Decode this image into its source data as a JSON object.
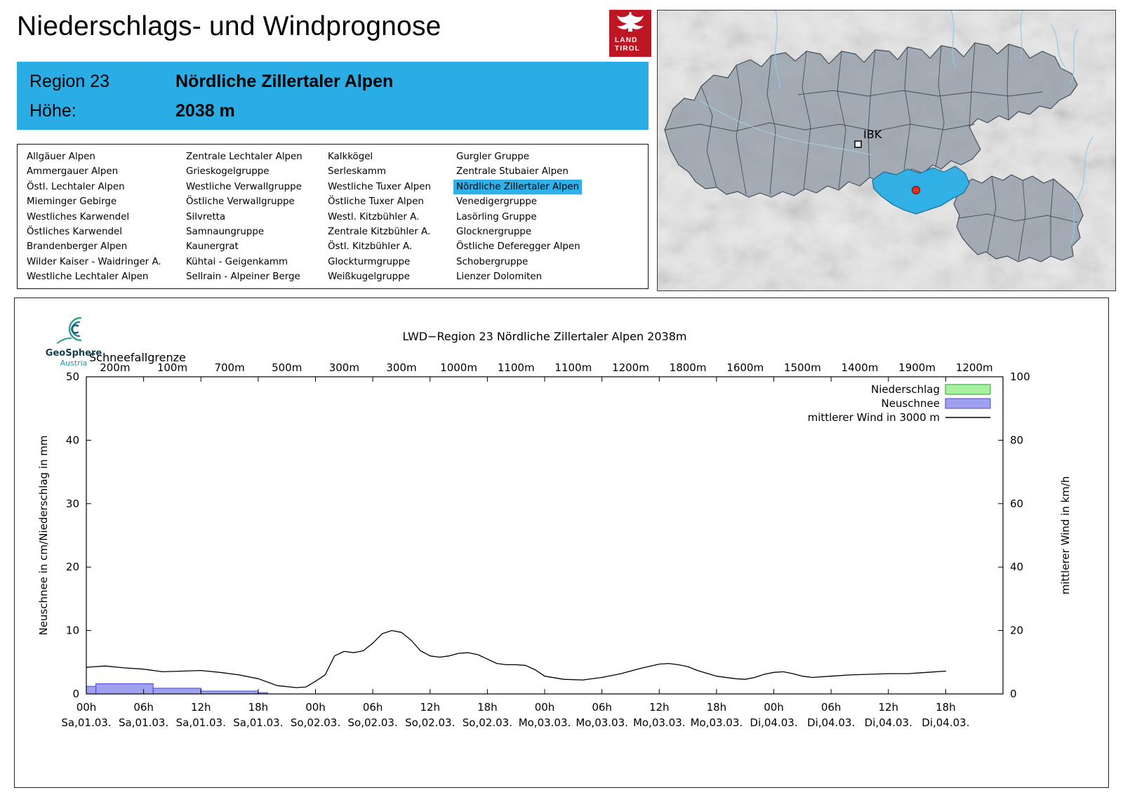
{
  "page": {
    "title": "Niederschlags- und Windprognose"
  },
  "branding": {
    "land_tirol_line1": "LAND",
    "land_tirol_line2": "TIROL",
    "geosphere_line1": "GeoSphere",
    "geosphere_line2": "Austria"
  },
  "region_header": {
    "region_label": "Region 23",
    "region_name": "Nördliche Zillertaler Alpen",
    "hoehe_label": "Höhe:",
    "hoehe_value": "2038 m"
  },
  "region_list": {
    "selected": "Nördliche Zillertaler Alpen",
    "columns": [
      [
        "Allgäuer Alpen",
        "Ammergauer Alpen",
        "Östl. Lechtaler Alpen",
        "Mieminger Gebirge",
        "Westliches Karwendel",
        "Östliches Karwendel",
        "Brandenberger Alpen",
        "Wilder Kaiser - Waidringer A.",
        "Westliche Lechtaler Alpen"
      ],
      [
        "Zentrale Lechtaler Alpen",
        "Grieskogelgruppe",
        "Westliche Verwallgruppe",
        "Östliche Verwallgruppe",
        "Silvretta",
        "Samnaungruppe",
        "Kaunergrat",
        "Kühtai - Geigenkamm",
        "Sellrain - Alpeiner Berge"
      ],
      [
        "Kalkkögel",
        "Serleskamm",
        "Westliche Tuxer Alpen",
        "Östliche Tuxer Alpen",
        "Westl. Kitzbühler A.",
        "Zentrale Kitzbühler A.",
        "Östl. Kitzbühler A.",
        "Glockturmgruppe",
        "Weißkugelgruppe"
      ],
      [
        "Gurgler Gruppe",
        "Zentrale Stubaier Alpen",
        "Nördliche Zillertaler Alpen",
        "Venedigergruppe",
        "Lasörling Gruppe",
        "Glocknergruppe",
        "Östliche Deferegger Alpen",
        "Schobergruppe",
        "Lienzer Dolomiten"
      ]
    ]
  },
  "map": {
    "ibk_label": "IBK",
    "highlight_color": "#29b0e8",
    "marker_color": "#e03224"
  },
  "chart_data": {
    "type": "composite-timeseries",
    "title": "LWD−Region 23 Nördliche Zillertaler Alpen 2038m",
    "left_axis": {
      "label": "Neuschnee in cm/Niederschlag in mm",
      "min": 0,
      "max": 50,
      "ticks": [
        0,
        10,
        20,
        30,
        40,
        50
      ]
    },
    "right_axis": {
      "label": "mittlerer Wind in km/h",
      "min": 0,
      "max": 100,
      "ticks": [
        0,
        20,
        40,
        60,
        80,
        100
      ]
    },
    "x_axis": {
      "hours_min": 0,
      "hours_max": 96,
      "tick_step_h": 6,
      "tick_labels": [
        "00h",
        "06h",
        "12h",
        "18h",
        "00h",
        "06h",
        "12h",
        "18h",
        "00h",
        "06h",
        "12h",
        "18h",
        "00h",
        "06h",
        "12h",
        "18h"
      ],
      "date_labels": [
        "Sa,01.03.",
        "Sa,01.03.",
        "Sa,01.03.",
        "Sa,01.03.",
        "So,02.03.",
        "So,02.03.",
        "So,02.03.",
        "So,02.03.",
        "Mo,03.03.",
        "Mo,03.03.",
        "Mo,03.03.",
        "Mo,03.03.",
        "Di,04.03.",
        "Di,04.03.",
        "Di,04.03.",
        "Di,04.03."
      ]
    },
    "schneefallgrenze": {
      "label": "Schneefallgrenze",
      "values": [
        "200m",
        "100m",
        "700m",
        "500m",
        "300m",
        "300m",
        "1000m",
        "1100m",
        "1100m",
        "1200m",
        "1800m",
        "1600m",
        "1500m",
        "1400m",
        "1900m",
        "1200m"
      ]
    },
    "legend": [
      {
        "label": "Niederschlag",
        "type": "box",
        "fill": "#a8f0a0",
        "stroke": "#28a028"
      },
      {
        "label": "Neuschnee",
        "type": "box",
        "fill": "#a0a0f0",
        "stroke": "#4848cc"
      },
      {
        "label": "mittlerer Wind in 3000 m",
        "type": "line",
        "stroke": "#000000"
      }
    ],
    "niederschlag_bars": [],
    "neuschnee_bars": [
      {
        "from_h": 0,
        "to_h": 1,
        "value": 1.2
      },
      {
        "from_h": 1,
        "to_h": 7,
        "value": 1.6
      },
      {
        "from_h": 7,
        "to_h": 12,
        "value": 0.9
      },
      {
        "from_h": 12,
        "to_h": 18,
        "value": 0.45
      },
      {
        "from_h": 18,
        "to_h": 19,
        "value": 0.2
      }
    ],
    "wind_line_3000m": {
      "x_hours": [
        0,
        2,
        4,
        6,
        8,
        10,
        12,
        14,
        16,
        18,
        20,
        22,
        23,
        24,
        25,
        26,
        27,
        28,
        29,
        30,
        31,
        32,
        33,
        34,
        35,
        36,
        37,
        38,
        39,
        40,
        41,
        42,
        43,
        44,
        45,
        46,
        47,
        48,
        50,
        52,
        54,
        56,
        58,
        60,
        61,
        62,
        63,
        64,
        66,
        68,
        69,
        70,
        71,
        72,
        73,
        74,
        75,
        76,
        78,
        80,
        82,
        84,
        86,
        88,
        90
      ],
      "values_kmh": [
        8.4,
        8.8,
        8.2,
        7.8,
        7.0,
        7.2,
        7.4,
        6.8,
        6.0,
        4.8,
        2.6,
        2.0,
        2.2,
        4.0,
        6.0,
        12.0,
        13.4,
        13.0,
        13.6,
        16.0,
        19.0,
        20.0,
        19.4,
        17.0,
        13.6,
        12.0,
        11.6,
        12.0,
        12.8,
        13.0,
        12.4,
        11.0,
        9.6,
        9.2,
        9.2,
        9.0,
        7.6,
        5.6,
        4.6,
        4.4,
        5.2,
        6.4,
        8.0,
        9.4,
        9.6,
        9.2,
        8.6,
        7.4,
        5.6,
        4.8,
        4.6,
        5.2,
        6.2,
        6.8,
        7.0,
        6.4,
        5.6,
        5.2,
        5.6,
        6.0,
        6.2,
        6.4,
        6.4,
        6.8,
        7.2
      ]
    }
  }
}
